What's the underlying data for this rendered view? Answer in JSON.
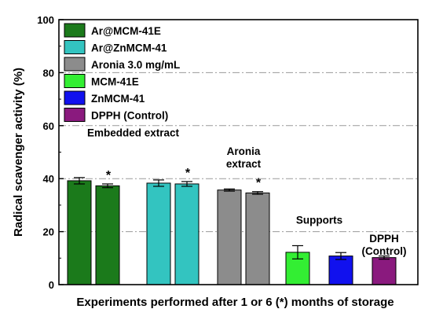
{
  "chart_data": {
    "type": "bar",
    "xlabel": "Experiments performed after 1 or 6 (*) months of storage",
    "ylabel": "Radical scavenger activity (%)",
    "ylim": [
      0,
      100
    ],
    "yticks": [
      "0",
      "20",
      "40",
      "60",
      "80",
      "100"
    ],
    "grid": "horizontal dash-dot lines at 20, 40, 60, 80",
    "legend_position": "top-left",
    "series": [
      {
        "name": "Ar@MCM-41E",
        "color": "#1b7a1b",
        "bars": [
          {
            "value": 39.2,
            "error": 1.2,
            "star": false
          },
          {
            "value": 37.3,
            "error": 0.7,
            "star": true
          }
        ]
      },
      {
        "name": "Ar@ZnMCM-41",
        "color": "#33c4c0",
        "bars": [
          {
            "value": 38.3,
            "error": 1.2,
            "star": false
          },
          {
            "value": 38.0,
            "error": 0.9,
            "star": true
          }
        ]
      },
      {
        "name": "Aronia 3.0 mg/mL",
        "color": "#8c8c8c",
        "bars": [
          {
            "value": 35.7,
            "error": 0.4,
            "star": false
          },
          {
            "value": 34.6,
            "error": 0.5,
            "star": true
          }
        ]
      },
      {
        "name": "MCM-41E",
        "color": "#33ee33",
        "bars": [
          {
            "value": 12.2,
            "error": 2.5,
            "star": false
          }
        ]
      },
      {
        "name": "ZnMCM-41",
        "color": "#1111ee",
        "bars": [
          {
            "value": 10.8,
            "error": 1.3,
            "star": false
          }
        ]
      },
      {
        "name": "DPPH (Control)",
        "color": "#8a1a7e",
        "bars": [
          {
            "value": 10.2,
            "error": 0.6,
            "star": false
          }
        ]
      }
    ],
    "star_symbol": "*",
    "annotations": [
      {
        "lines": [
          "Embedded extract"
        ],
        "x_group": 0.5,
        "y": 56
      },
      {
        "lines": [
          "Aronia",
          "extract"
        ],
        "x_group": 2,
        "y": 49
      },
      {
        "lines": [
          "Supports"
        ],
        "x_group": 3.5,
        "y": 23
      },
      {
        "lines": [
          "DPPH",
          "(Control)"
        ],
        "x_group": 5,
        "y": 16
      }
    ]
  }
}
